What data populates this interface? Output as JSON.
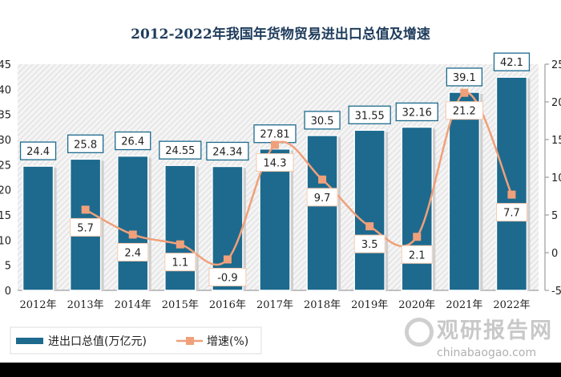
{
  "chart_data": {
    "type": "bar+line",
    "title": "2012-2022年我国年货物贸易进出口总值及增速",
    "categories": [
      "2012年",
      "2013年",
      "2014年",
      "2015年",
      "2016年",
      "2017年",
      "2018年",
      "2019年",
      "2020年",
      "2021年",
      "2022年"
    ],
    "series": [
      {
        "name": "进出口总值(万亿元)",
        "type": "bar",
        "axis": "left",
        "color": "#1d6a8e",
        "values": [
          24.4,
          25.8,
          26.4,
          24.55,
          24.34,
          27.81,
          30.5,
          31.55,
          32.16,
          39.1,
          42.1
        ],
        "labels": [
          "24.4",
          "25.8",
          "26.4",
          "24.55",
          "24.34",
          "27.81",
          "30.5",
          "31.55",
          "32.16",
          "39.1",
          "42.1"
        ]
      },
      {
        "name": "增速(%)",
        "type": "line",
        "axis": "right",
        "color": "#f0a07a",
        "values": [
          null,
          5.7,
          2.4,
          1.1,
          -0.9,
          14.3,
          9.7,
          3.5,
          2.1,
          21.2,
          7.7
        ],
        "labels": [
          "",
          "5.7",
          "2.4",
          "1.1",
          "-0.9",
          "14.3",
          "9.7",
          "3.5",
          "2.1",
          "21.2",
          "7.7"
        ]
      }
    ],
    "y_left": {
      "range": [
        0,
        45
      ],
      "ticks": [
        "0",
        "5",
        "10",
        "15",
        "20",
        "25",
        "30",
        "35",
        "40",
        "45"
      ]
    },
    "y_right": {
      "range": [
        -5,
        25
      ],
      "ticks": [
        "-5",
        "0",
        "5",
        "10",
        "15",
        "20",
        "25"
      ]
    },
    "legend_position": "bottom",
    "grid": false
  },
  "watermark": {
    "cn": "观研报告网",
    "url": "chinabaogao.com"
  }
}
